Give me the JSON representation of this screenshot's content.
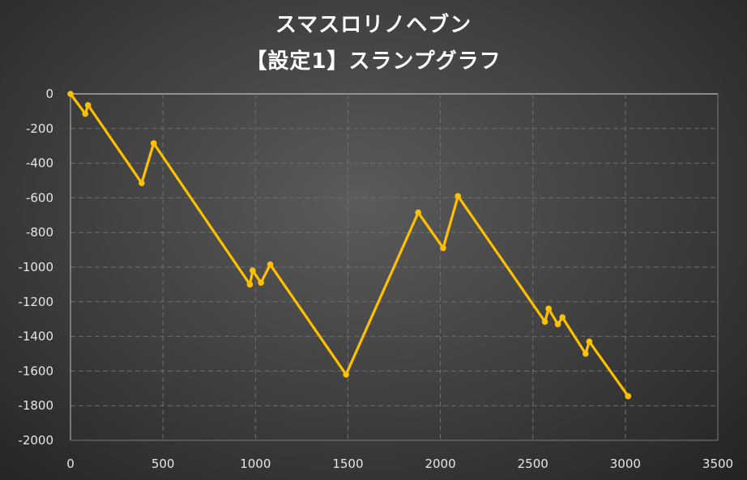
{
  "chart_data": {
    "type": "line",
    "title": "スマスロリノヘブン",
    "subtitle": "【設定1】スランプグラフ",
    "xlabel": "",
    "ylabel": "",
    "xlim": [
      0,
      3500
    ],
    "ylim": [
      -2000,
      0
    ],
    "x_ticks": [
      0,
      500,
      1000,
      1500,
      2000,
      2500,
      3000,
      3500
    ],
    "y_ticks": [
      0,
      -200,
      -400,
      -600,
      -800,
      -1000,
      -1200,
      -1400,
      -1600,
      -1800,
      -2000
    ],
    "grid": true,
    "legend": "none",
    "series": [
      {
        "color": "#FFC000",
        "points": [
          [
            0,
            0
          ],
          [
            80,
            -115
          ],
          [
            95,
            -65
          ],
          [
            385,
            -515
          ],
          [
            450,
            -285
          ],
          [
            970,
            -1100
          ],
          [
            985,
            -1020
          ],
          [
            1030,
            -1090
          ],
          [
            1080,
            -985
          ],
          [
            1490,
            -1620
          ],
          [
            1880,
            -685
          ],
          [
            2015,
            -890
          ],
          [
            2095,
            -590
          ],
          [
            2565,
            -1315
          ],
          [
            2585,
            -1240
          ],
          [
            2635,
            -1330
          ],
          [
            2660,
            -1290
          ],
          [
            2785,
            -1500
          ],
          [
            2805,
            -1430
          ],
          [
            3015,
            -1745
          ]
        ]
      }
    ]
  },
  "colors": {
    "line": "#FFC000",
    "grid": "#6e6e6e",
    "text": "#e6e6e6"
  }
}
